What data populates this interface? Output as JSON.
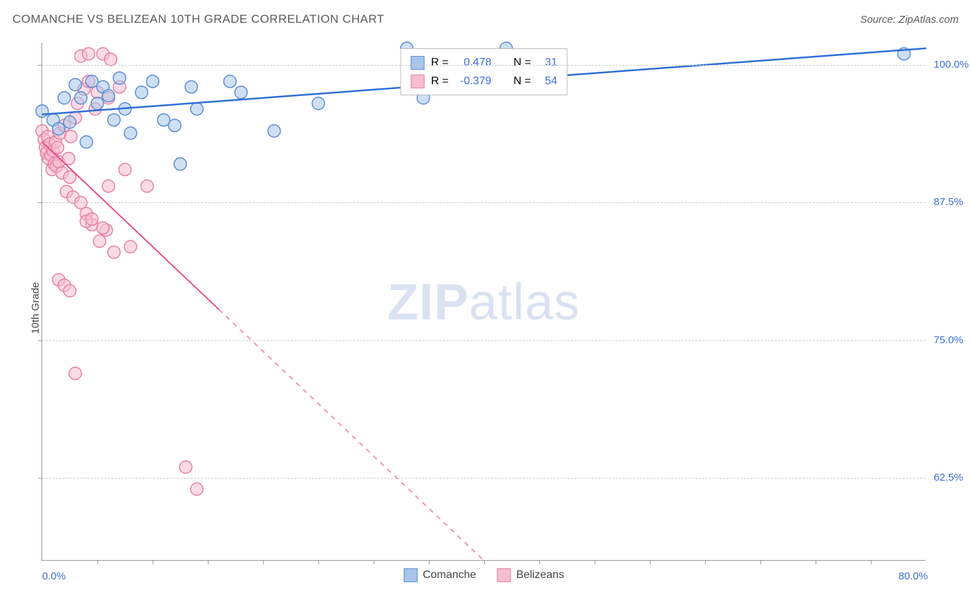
{
  "header": {
    "title": "COMANCHE VS BELIZEAN 10TH GRADE CORRELATION CHART",
    "source": "Source: ZipAtlas.com"
  },
  "chart": {
    "type": "scatter",
    "y_label": "10th Grade",
    "xlim": [
      0,
      80
    ],
    "ylim": [
      55,
      102
    ],
    "x_ticks_labeled": [
      {
        "v": 0,
        "label": "0.0%"
      },
      {
        "v": 80,
        "label": "80.0%"
      }
    ],
    "x_ticks_minor": [
      5,
      10,
      15,
      20,
      25,
      30,
      35,
      40,
      45,
      50,
      55,
      60,
      65,
      70,
      75
    ],
    "y_ticks": [
      {
        "v": 62.5,
        "label": "62.5%"
      },
      {
        "v": 75.0,
        "label": "75.0%"
      },
      {
        "v": 87.5,
        "label": "87.5%"
      },
      {
        "v": 100.0,
        "label": "100.0%"
      }
    ],
    "grid_color": "#cccccc",
    "background_color": "#ffffff",
    "axis_color": "#999999",
    "tick_label_color": "#3b6fd4",
    "marker_radius": 9,
    "marker_opacity": 0.55,
    "watermark_text_bold": "ZIP",
    "watermark_text_light": "atlas",
    "watermark_color": "#7a9bd0",
    "series": {
      "comanche": {
        "label": "Comanche",
        "fill": "#a8c4ea",
        "stroke": "#5a8dd6",
        "line_color": "#2e6fd6",
        "line_width": 2.5,
        "R": "0.478",
        "N": "31",
        "trend": {
          "x1": 0,
          "y1": 95.5,
          "x2": 80,
          "y2": 101.5,
          "dashed_from_x": null
        },
        "points": [
          [
            0,
            95.8
          ],
          [
            1,
            95.0
          ],
          [
            1.5,
            94.2
          ],
          [
            2,
            97.0
          ],
          [
            2.5,
            94.8
          ],
          [
            3,
            98.2
          ],
          [
            3.5,
            97.0
          ],
          [
            4,
            93.0
          ],
          [
            4.5,
            98.5
          ],
          [
            5,
            96.5
          ],
          [
            5.5,
            98.0
          ],
          [
            6,
            97.2
          ],
          [
            6.5,
            95.0
          ],
          [
            7,
            98.8
          ],
          [
            7.5,
            96.0
          ],
          [
            8,
            93.8
          ],
          [
            9,
            97.5
          ],
          [
            10,
            98.5
          ],
          [
            11,
            95.0
          ],
          [
            12,
            94.5
          ],
          [
            12.5,
            91.0
          ],
          [
            13.5,
            98.0
          ],
          [
            14,
            96.0
          ],
          [
            17,
            98.5
          ],
          [
            18,
            97.5
          ],
          [
            21,
            94.0
          ],
          [
            25,
            96.5
          ],
          [
            33,
            101.5
          ],
          [
            34.5,
            97.0
          ],
          [
            42,
            101.5
          ],
          [
            78,
            101.0
          ]
        ]
      },
      "belizeans": {
        "label": "Belizeans",
        "fill": "#f6bdd0",
        "stroke": "#e77fa6",
        "line_color": "#e94d87",
        "line_width": 2,
        "R": "-0.379",
        "N": "54",
        "trend": {
          "x1": 0,
          "y1": 93.0,
          "x2": 40,
          "y2": 55,
          "dashed_from_x": 16
        },
        "points": [
          [
            0,
            94.0
          ],
          [
            0.2,
            93.2
          ],
          [
            0.3,
            92.5
          ],
          [
            0.4,
            92.0
          ],
          [
            0.5,
            93.5
          ],
          [
            0.6,
            91.5
          ],
          [
            0.7,
            92.8
          ],
          [
            0.8,
            91.8
          ],
          [
            0.9,
            90.5
          ],
          [
            1,
            92.2
          ],
          [
            1.1,
            91.0
          ],
          [
            1.2,
            93.0
          ],
          [
            1.3,
            90.8
          ],
          [
            1.4,
            92.5
          ],
          [
            1.5,
            91.2
          ],
          [
            1.6,
            93.8
          ],
          [
            1.8,
            90.2
          ],
          [
            2,
            94.5
          ],
          [
            2.2,
            88.5
          ],
          [
            2.4,
            91.5
          ],
          [
            2.5,
            89.8
          ],
          [
            2.6,
            93.5
          ],
          [
            2.8,
            88.0
          ],
          [
            3,
            95.2
          ],
          [
            3.2,
            96.5
          ],
          [
            3.5,
            87.5
          ],
          [
            3.8,
            97.8
          ],
          [
            4,
            86.5
          ],
          [
            4.2,
            98.5
          ],
          [
            4.5,
            85.5
          ],
          [
            4.8,
            96.0
          ],
          [
            5,
            97.5
          ],
          [
            5.2,
            84.0
          ],
          [
            5.5,
            101.0
          ],
          [
            5.8,
            85.0
          ],
          [
            6,
            97.0
          ],
          [
            6.2,
            100.5
          ],
          [
            6.5,
            83.0
          ],
          [
            7,
            98.0
          ],
          [
            7.5,
            90.5
          ],
          [
            8,
            83.5
          ],
          [
            1.5,
            80.5
          ],
          [
            2,
            80.0
          ],
          [
            2.5,
            79.5
          ],
          [
            3,
            72.0
          ],
          [
            4,
            85.8
          ],
          [
            4.5,
            86.0
          ],
          [
            5.5,
            85.2
          ],
          [
            6,
            89.0
          ],
          [
            9.5,
            89.0
          ],
          [
            13,
            63.5
          ],
          [
            14,
            61.5
          ],
          [
            3.5,
            100.8
          ],
          [
            4.2,
            101.0
          ]
        ]
      }
    },
    "legend_stats": {
      "r_label": "R =",
      "n_label": "N =",
      "value_color": "#3b6fd4",
      "label_color": "#444444"
    }
  }
}
